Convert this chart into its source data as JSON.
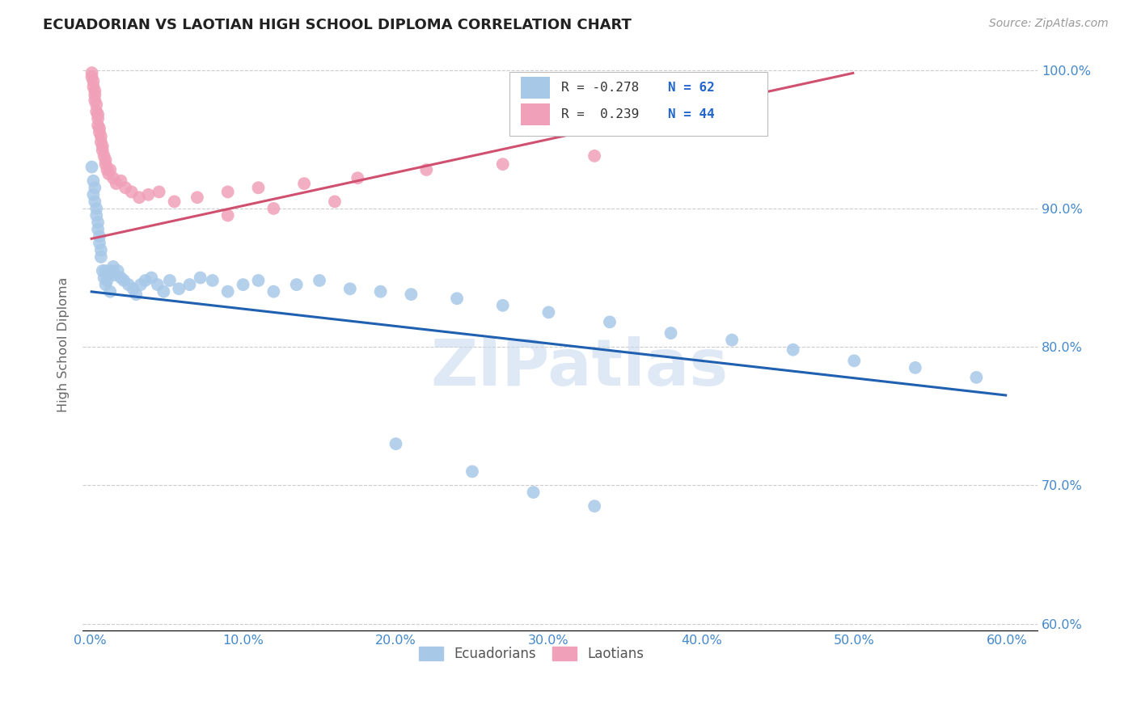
{
  "title": "ECUADORIAN VS LAOTIAN HIGH SCHOOL DIPLOMA CORRELATION CHART",
  "source": "Source: ZipAtlas.com",
  "xlim": [
    -0.005,
    0.62
  ],
  "ylim": [
    0.595,
    1.008
  ],
  "ylabel": "High School Diploma",
  "legend_labels": [
    "Ecuadorians",
    "Laotians"
  ],
  "legend_R_blue": "R = -0.278",
  "legend_R_pink": "R =  0.239",
  "legend_N_blue": "N = 62",
  "legend_N_pink": "N = 44",
  "blue_color": "#a8c8e8",
  "pink_color": "#f0a0b8",
  "blue_line_color": "#2060b0",
  "pink_line_color": "#d05070",
  "watermark": "ZIPatlas",
  "ecuadorians_x": [
    0.001,
    0.002,
    0.002,
    0.003,
    0.003,
    0.004,
    0.004,
    0.005,
    0.005,
    0.006,
    0.006,
    0.007,
    0.007,
    0.008,
    0.009,
    0.01,
    0.01,
    0.011,
    0.012,
    0.013,
    0.014,
    0.015,
    0.016,
    0.018,
    0.02,
    0.022,
    0.025,
    0.028,
    0.03,
    0.033,
    0.036,
    0.04,
    0.044,
    0.048,
    0.052,
    0.058,
    0.065,
    0.072,
    0.08,
    0.09,
    0.1,
    0.11,
    0.12,
    0.135,
    0.15,
    0.17,
    0.19,
    0.21,
    0.24,
    0.27,
    0.3,
    0.34,
    0.38,
    0.42,
    0.46,
    0.5,
    0.54,
    0.58,
    0.2,
    0.25,
    0.29,
    0.33
  ],
  "ecuadorians_y": [
    0.93,
    0.92,
    0.91,
    0.915,
    0.905,
    0.9,
    0.895,
    0.89,
    0.885,
    0.88,
    0.875,
    0.87,
    0.865,
    0.855,
    0.85,
    0.845,
    0.855,
    0.848,
    0.852,
    0.84,
    0.855,
    0.858,
    0.852,
    0.855,
    0.85,
    0.848,
    0.845,
    0.842,
    0.838,
    0.845,
    0.848,
    0.85,
    0.845,
    0.84,
    0.848,
    0.842,
    0.845,
    0.85,
    0.848,
    0.84,
    0.845,
    0.848,
    0.84,
    0.845,
    0.848,
    0.842,
    0.84,
    0.838,
    0.835,
    0.83,
    0.825,
    0.818,
    0.81,
    0.805,
    0.798,
    0.79,
    0.785,
    0.778,
    0.73,
    0.71,
    0.695,
    0.685
  ],
  "laotians_x": [
    0.001,
    0.001,
    0.002,
    0.002,
    0.003,
    0.003,
    0.003,
    0.004,
    0.004,
    0.005,
    0.005,
    0.005,
    0.006,
    0.006,
    0.007,
    0.007,
    0.008,
    0.008,
    0.009,
    0.01,
    0.01,
    0.011,
    0.012,
    0.013,
    0.015,
    0.017,
    0.02,
    0.023,
    0.027,
    0.032,
    0.038,
    0.045,
    0.055,
    0.07,
    0.09,
    0.11,
    0.14,
    0.175,
    0.22,
    0.27,
    0.33,
    0.09,
    0.12,
    0.16
  ],
  "laotians_y": [
    0.998,
    0.995,
    0.992,
    0.988,
    0.985,
    0.982,
    0.978,
    0.975,
    0.97,
    0.968,
    0.965,
    0.96,
    0.958,
    0.955,
    0.952,
    0.948,
    0.945,
    0.942,
    0.938,
    0.935,
    0.932,
    0.928,
    0.925,
    0.928,
    0.922,
    0.918,
    0.92,
    0.915,
    0.912,
    0.908,
    0.91,
    0.912,
    0.905,
    0.908,
    0.912,
    0.915,
    0.918,
    0.922,
    0.928,
    0.932,
    0.938,
    0.895,
    0.9,
    0.905
  ],
  "blue_trendline_x": [
    0.0,
    0.6
  ],
  "blue_trendline_y": [
    0.84,
    0.765
  ],
  "pink_trendline_x": [
    0.0,
    0.5
  ],
  "pink_trendline_y": [
    0.878,
    0.998
  ]
}
